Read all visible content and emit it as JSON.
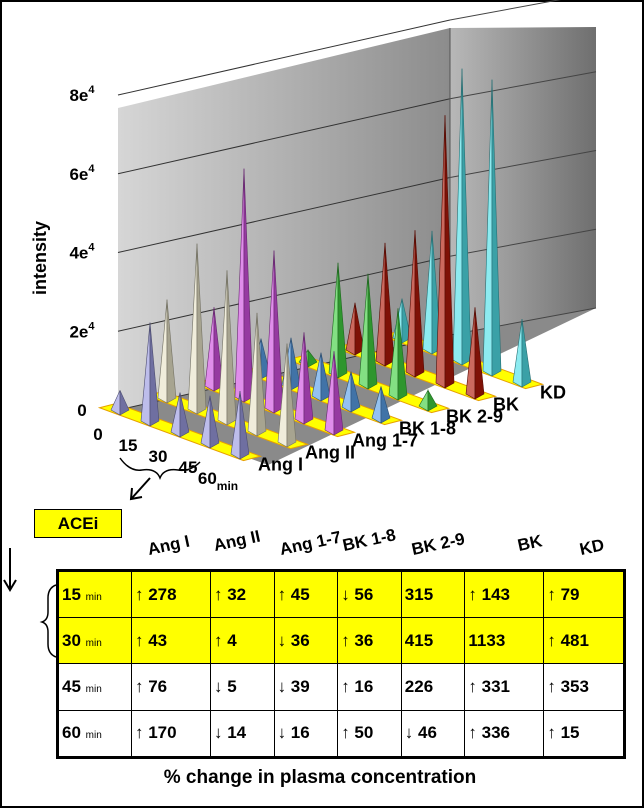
{
  "chart_data": [
    {
      "type": "bar",
      "ylabel": "intensity",
      "yticks": [
        "0",
        "2e4",
        "4e4",
        "6e4",
        "8e4"
      ],
      "ylim": [
        0,
        80000
      ],
      "time_label": "min",
      "categories": [
        "0",
        "15",
        "30",
        "45",
        "60"
      ],
      "series": [
        {
          "name": "Ang I",
          "color": "#9a9ae0",
          "values": [
            5000,
            25000,
            10000,
            12000,
            16000
          ]
        },
        {
          "name": "Ang II",
          "color": "#e8e4c8",
          "values": [
            25000,
            42000,
            38000,
            30000,
            25000
          ]
        },
        {
          "name": "Ang 1-7",
          "color": "#d050e0",
          "values": [
            20000,
            58000,
            40000,
            22000,
            20000
          ]
        },
        {
          "name": "BK 1-8",
          "color": "#5aa0e8",
          "values": [
            9000,
            12000,
            11000,
            9000,
            8000
          ]
        },
        {
          "name": "BK 2-9",
          "color": "#40d040",
          "values": [
            3000,
            28000,
            28000,
            22000,
            4000
          ]
        },
        {
          "name": "BK",
          "color": "#b01808",
          "values": [
            12000,
            30000,
            36000,
            68000,
            22000
          ]
        },
        {
          "name": "KD",
          "color": "#50e0e8",
          "values": [
            10000,
            30000,
            74000,
            74000,
            16000
          ]
        }
      ]
    },
    {
      "type": "table",
      "title": "% change in plasma concentration",
      "group_label": "ACEi",
      "columns": [
        "Ang I",
        "Ang II",
        "Ang 1-7",
        "BK 1-8",
        "BK 2-9",
        "BK",
        "KD"
      ],
      "rows": [
        {
          "time": "15",
          "unit": "min",
          "cells": [
            "↑ 278",
            "↑ 32",
            "↑ 45",
            "↓ 56",
            "315",
            "↑ 143",
            "↑ 79"
          ]
        },
        {
          "time": "30",
          "unit": "min",
          "cells": [
            "↑ 43",
            "↑ 4",
            "↓ 36",
            "↑ 36",
            "415",
            "1133",
            "↑ 481"
          ]
        },
        {
          "time": "45",
          "unit": "min",
          "cells": [
            "↑ 76",
            "↓ 5",
            "↓ 39",
            "↑ 16",
            "226",
            "↑ 331",
            "↑ 353"
          ]
        },
        {
          "time": "60",
          "unit": "min",
          "cells": [
            "↑ 170",
            "↓ 14",
            "↓ 16",
            "↑ 50",
            "↓ 46",
            "↑ 336",
            "↑ 15"
          ]
        }
      ]
    }
  ]
}
